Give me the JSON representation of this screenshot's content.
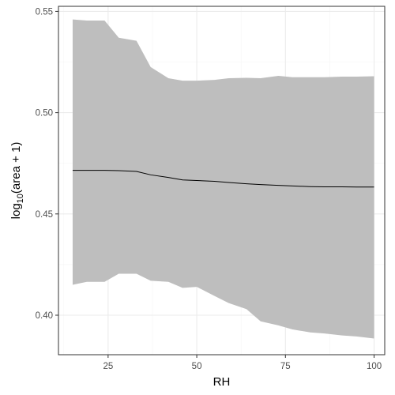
{
  "chart_data": {
    "type": "area",
    "title": "",
    "xlabel": "RH",
    "ylabel": {
      "prefix": "log",
      "subscript": "10",
      "argument": "(area + 1)"
    },
    "xlim": [
      11,
      103
    ],
    "ylim": [
      0.3805,
      0.5525
    ],
    "x_ticks": [
      25,
      50,
      75,
      100
    ],
    "x_tick_labels": [
      "25",
      "50",
      "75",
      "100"
    ],
    "y_ticks": [
      0.4,
      0.45,
      0.5,
      0.55
    ],
    "y_tick_labels": [
      "0.40",
      "0.45",
      "0.50",
      "0.55"
    ],
    "grid": true,
    "series": [
      {
        "x": [
          15,
          19,
          24,
          28,
          33,
          37,
          42,
          46,
          50,
          55,
          59,
          64,
          68,
          73,
          77,
          82,
          86,
          91,
          95,
          100
        ],
        "y": [
          0.4715,
          0.4715,
          0.4715,
          0.4714,
          0.471,
          0.4693,
          0.468,
          0.4668,
          0.4665,
          0.4661,
          0.4655,
          0.4649,
          0.4645,
          0.4641,
          0.4638,
          0.4635,
          0.4634,
          0.4634,
          0.4633,
          0.4633
        ],
        "ymin": [
          0.415,
          0.4165,
          0.4165,
          0.4205,
          0.4205,
          0.417,
          0.4165,
          0.4135,
          0.414,
          0.4095,
          0.406,
          0.403,
          0.397,
          0.395,
          0.393,
          0.3915,
          0.391,
          0.39,
          0.3895,
          0.3885
        ],
        "ymax": [
          0.546,
          0.5455,
          0.5455,
          0.537,
          0.5355,
          0.5225,
          0.517,
          0.5158,
          0.5158,
          0.5162,
          0.517,
          0.5172,
          0.517,
          0.5182,
          0.5175,
          0.5175,
          0.5175,
          0.5178,
          0.5178,
          0.518
        ]
      }
    ],
    "colors": {
      "ribbon": "#bebebe",
      "line": "#000000",
      "panel_border": "#333333",
      "grid_major": "#ebebeb",
      "grid_minor": "#f5f5f5",
      "tick_text": "#4d4d4d"
    }
  }
}
